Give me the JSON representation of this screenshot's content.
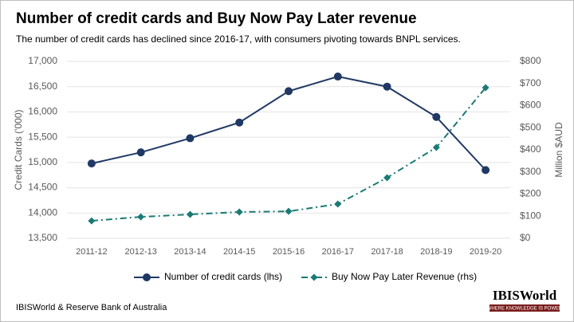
{
  "chart_data": {
    "type": "line",
    "title": "Number of credit cards and Buy Now Pay Later revenue",
    "subtitle": "The number of credit cards has declined since 2016-17, with consumers pivoting towards BNPL services.",
    "y_label": "Credit Cards ('000)",
    "y2_label": "Million $AUD",
    "categories": [
      "2011-12",
      "2012-13",
      "2013-14",
      "2014-15",
      "2015-16",
      "2016-17",
      "2017-18",
      "2018-19",
      "2019-20"
    ],
    "series": [
      {
        "name": "Number of credit cards (lhs)",
        "color": "#1f3864",
        "marker": "circle",
        "line_style": "solid",
        "values": [
          14980,
          15200,
          15480,
          15790,
          16410,
          16700,
          16500,
          15900,
          14850
        ]
      },
      {
        "name": "Buy Now Pay Later Revenue (rhs)",
        "color": "#1a7a74",
        "marker": "diamond",
        "line_style": "dashdot",
        "axis": "y2",
        "values": [
          79,
          97,
          108,
          119,
          122,
          155,
          274,
          411,
          681
        ]
      }
    ],
    "ylim": [
      13500,
      17000
    ],
    "yticks": [
      {
        "value": 13500,
        "label": "13,500"
      },
      {
        "value": 14000,
        "label": "14,000"
      },
      {
        "value": 14500,
        "label": "14,500"
      },
      {
        "value": 15000,
        "label": "15,000"
      },
      {
        "value": 15500,
        "label": "15,500"
      },
      {
        "value": 16000,
        "label": "16,000"
      },
      {
        "value": 16500,
        "label": "16,500"
      },
      {
        "value": 17000,
        "label": "17,000"
      }
    ],
    "y2lim": [
      0,
      800
    ],
    "y2ticks": [
      {
        "value": 0,
        "label": "$0"
      },
      {
        "value": 100,
        "label": "$100"
      },
      {
        "value": 200,
        "label": "$200"
      },
      {
        "value": 300,
        "label": "$300"
      },
      {
        "value": 400,
        "label": "$400"
      },
      {
        "value": 500,
        "label": "$500"
      },
      {
        "value": 600,
        "label": "$600"
      },
      {
        "value": 700,
        "label": "$700"
      },
      {
        "value": 800,
        "label": "$800"
      }
    ],
    "grid": true,
    "legend": "bottom",
    "source": "IBISWorld & Reserve Bank of Australia",
    "logo": {
      "name": "IBISWorld",
      "tagline": "WHERE KNOWLEDGE IS POWER"
    }
  }
}
